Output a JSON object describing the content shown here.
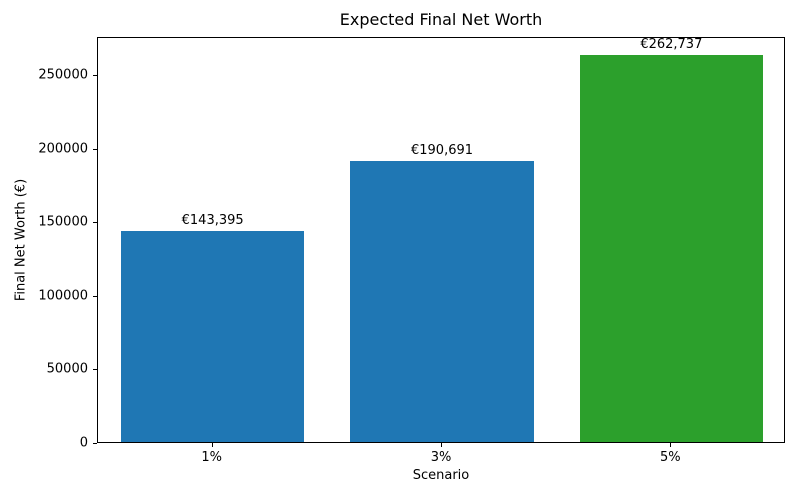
{
  "chart_data": {
    "type": "bar",
    "title": "Expected Final Net Worth",
    "xlabel": "Scenario",
    "ylabel": "Final Net Worth (€)",
    "categories": [
      "1%",
      "3%",
      "5%"
    ],
    "values": [
      143395,
      190691,
      262737
    ],
    "bar_labels": [
      "€143,395",
      "€190,691",
      "€262,737"
    ],
    "bar_colors": [
      "#1f77b4",
      "#1f77b4",
      "#2ca02c"
    ],
    "ylim": [
      0,
      275874
    ],
    "yticks": [
      0,
      50000,
      100000,
      150000,
      200000,
      250000
    ],
    "ytick_labels": [
      "0",
      "50000",
      "100000",
      "150000",
      "200000",
      "250000"
    ],
    "grid": false,
    "legend": null,
    "bar_width_fraction": 0.8
  }
}
